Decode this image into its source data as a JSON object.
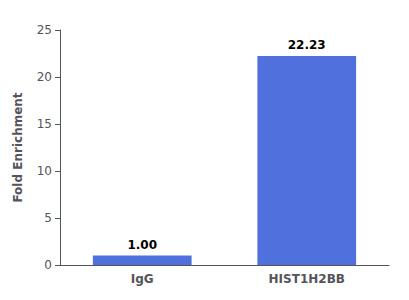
{
  "chart_data": {
    "type": "bar",
    "categories": [
      "IgG",
      "HIST1H2BB"
    ],
    "values": [
      1.0,
      22.23
    ],
    "value_labels": [
      "1.00",
      "22.23"
    ],
    "data_labels": true,
    "ylabel": "Fold Enrichment",
    "ylim": [
      0,
      25
    ],
    "yticks": [
      0,
      5,
      10,
      15,
      20,
      25
    ],
    "grid": false
  }
}
